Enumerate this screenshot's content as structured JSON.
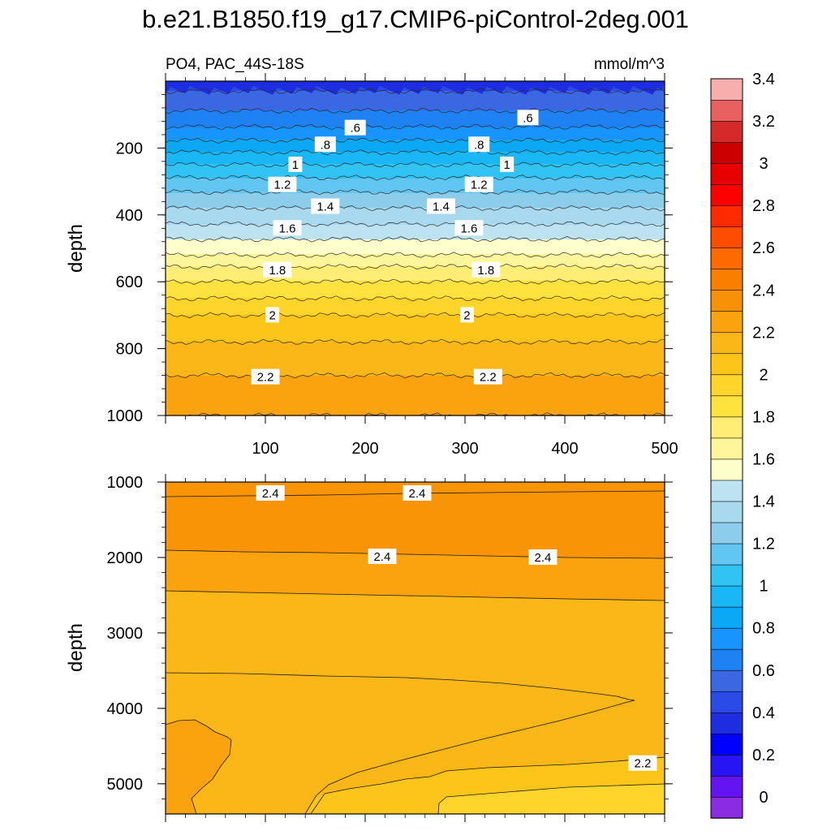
{
  "title": "b.e21.B1850.f19_g17.CMIP6-piControl-2deg.001",
  "left_subtitle": "PO4, PAC_44S-18S",
  "right_subtitle": "mmol/m^3",
  "colorbar": {
    "labels": [
      "0",
      "0.2",
      "0.4",
      "0.6",
      "0.8",
      "1",
      "1.2",
      "1.4",
      "1.6",
      "1.8",
      "2",
      "2.2",
      "2.4",
      "2.6",
      "2.8",
      "3",
      "3.2",
      "3.4"
    ],
    "colors": [
      "#8b2be2",
      "#6414f0",
      "#2815f5",
      "#0000ff",
      "#1e2ddf",
      "#2b4ae6",
      "#3b67e3",
      "#1e82f5",
      "#1894ff",
      "#0aa8f5",
      "#19b7f5",
      "#30c3f4",
      "#62c6f3",
      "#8ccdec",
      "#a8d9ef",
      "#bde3f3",
      "#ffffcc",
      "#fff59a",
      "#ffed75",
      "#ffe23e",
      "#ffd52b",
      "#fdc51a",
      "#fbb617",
      "#fba30f",
      "#f99107",
      "#fa7f00",
      "#fe6a00",
      "#ff4d00",
      "#ff2a00",
      "#fe0000",
      "#e60000",
      "#cc0000",
      "#d42a2a",
      "#e86060",
      "#f9aeae"
    ]
  },
  "chart_data": [
    {
      "type": "heatmap",
      "panel": "upper",
      "subtitle_left": "PO4, PAC_44S-18S",
      "subtitle_right": "mmol/m^3",
      "ylabel": "depth",
      "xlabel": "",
      "xlim": [
        0,
        500
      ],
      "ylim": [
        1000,
        0
      ],
      "xticks": [
        "100",
        "200",
        "300",
        "400",
        "500"
      ],
      "yticks": [
        "200",
        "400",
        "600",
        "800",
        "1000"
      ],
      "contour_levels": [
        0.6,
        0.8,
        1,
        1.2,
        1.4,
        1.6,
        1.8,
        2,
        2.2
      ],
      "contour_labels": [
        {
          "text": ".6",
          "x": 190,
          "y": 140
        },
        {
          "text": ".6",
          "x": 363,
          "y": 110
        },
        {
          "text": ".8",
          "x": 160,
          "y": 190
        },
        {
          "text": ".8",
          "x": 314,
          "y": 190
        },
        {
          "text": "1",
          "x": 130,
          "y": 250
        },
        {
          "text": "1",
          "x": 342,
          "y": 250
        },
        {
          "text": "1.2",
          "x": 117,
          "y": 310
        },
        {
          "text": "1.2",
          "x": 314,
          "y": 310
        },
        {
          "text": "1.4",
          "x": 160,
          "y": 375
        },
        {
          "text": "1.4",
          "x": 276,
          "y": 375
        },
        {
          "text": "1.6",
          "x": 122,
          "y": 440
        },
        {
          "text": "1.6",
          "x": 304,
          "y": 440
        },
        {
          "text": "1.8",
          "x": 112,
          "y": 565
        },
        {
          "text": "1.8",
          "x": 321,
          "y": 565
        },
        {
          "text": "2",
          "x": 107,
          "y": 700
        },
        {
          "text": "2",
          "x": 302,
          "y": 700
        },
        {
          "text": "2.2",
          "x": 100,
          "y": 885
        },
        {
          "text": "2.2",
          "x": 323,
          "y": 885
        }
      ],
      "depth_profile": {
        "depth": [
          0,
          60,
          100,
          160,
          220,
          280,
          340,
          400,
          450,
          500,
          540,
          560,
          600,
          650,
          700,
          760,
          820,
          880,
          950,
          1000
        ],
        "value": [
          0.45,
          0.55,
          0.62,
          0.75,
          0.92,
          1.08,
          1.22,
          1.34,
          1.45,
          1.56,
          1.64,
          1.72,
          1.8,
          1.9,
          2.0,
          2.08,
          2.14,
          2.2,
          2.26,
          2.3
        ]
      }
    },
    {
      "type": "heatmap",
      "panel": "lower",
      "ylabel": "depth",
      "xlabel": "",
      "xlim": [
        0,
        500
      ],
      "ylim": [
        5400,
        1000
      ],
      "yticks": [
        "1000",
        "2000",
        "3000",
        "4000",
        "5000"
      ],
      "contour_levels": [
        2.2,
        2.4
      ],
      "contour_labels": [
        {
          "text": "2.4",
          "x": 105,
          "y": 1150
        },
        {
          "text": "2.4",
          "x": 252,
          "y": 1150
        },
        {
          "text": "2.4",
          "x": 217,
          "y": 1990
        },
        {
          "text": "2.4",
          "x": 378,
          "y": 2000
        },
        {
          "text": "2.2",
          "x": 478,
          "y": 4730
        }
      ],
      "regions": [
        {
          "name": "2.4-2.5",
          "color": "#fa9407"
        },
        {
          "name": "2.3-2.4",
          "color": "#fba30f"
        },
        {
          "name": "2.2-2.3",
          "color": "#fbb617"
        },
        {
          "name": "2.1-2.2",
          "color": "#fdc51a"
        },
        {
          "name": "2.0-2.1",
          "color": "#ffd52b"
        }
      ]
    }
  ]
}
